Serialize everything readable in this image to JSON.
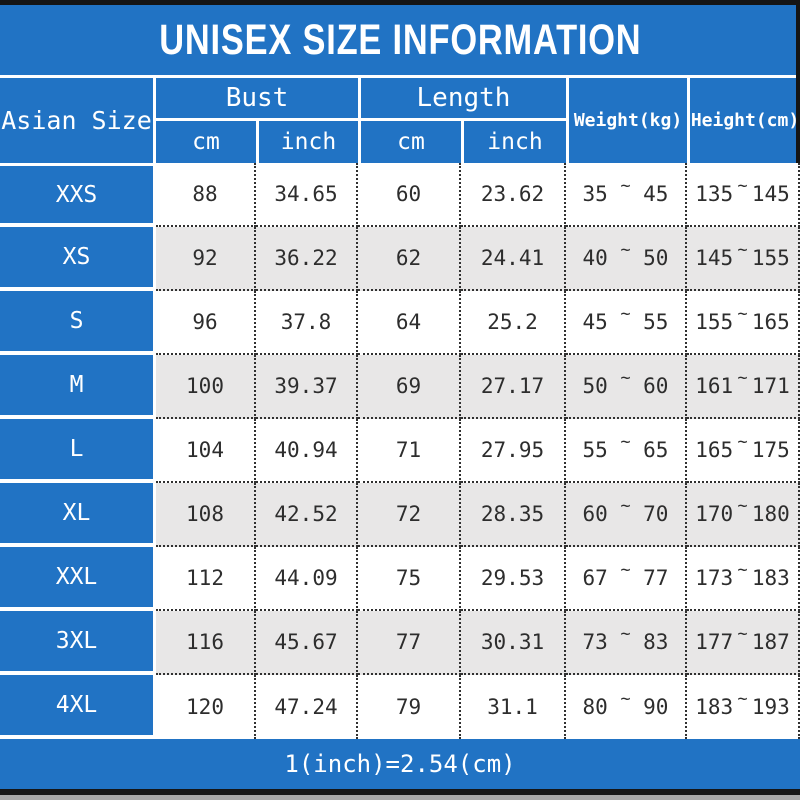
{
  "colors": {
    "accent_blue": "#2173c4",
    "alt_row_gray": "#e8e7e7",
    "bar_black": "#151515",
    "text_dark": "#2d2d2d"
  },
  "chart_data": {
    "type": "table",
    "title": "UNISEX SIZE INFORMATION",
    "header": {
      "asian_size": "Asian Size",
      "bust": "Bust",
      "length": "Length",
      "weight": "Weight(kg)",
      "height": "Height(cm)",
      "unit_cm": "cm",
      "unit_inch": "inch"
    },
    "range_separator": "~",
    "rows": [
      {
        "size": "XXS",
        "bust_cm": 88,
        "bust_inch": 34.65,
        "length_cm": 60,
        "length_inch": 23.62,
        "weight_min": 35,
        "weight_max": 45,
        "height_min": 135,
        "height_max": 145
      },
      {
        "size": "XS",
        "bust_cm": 92,
        "bust_inch": 36.22,
        "length_cm": 62,
        "length_inch": 24.41,
        "weight_min": 40,
        "weight_max": 50,
        "height_min": 145,
        "height_max": 155
      },
      {
        "size": "S",
        "bust_cm": 96,
        "bust_inch": 37.8,
        "length_cm": 64,
        "length_inch": 25.2,
        "weight_min": 45,
        "weight_max": 55,
        "height_min": 155,
        "height_max": 165
      },
      {
        "size": "M",
        "bust_cm": 100,
        "bust_inch": 39.37,
        "length_cm": 69,
        "length_inch": 27.17,
        "weight_min": 50,
        "weight_max": 60,
        "height_min": 161,
        "height_max": 171
      },
      {
        "size": "L",
        "bust_cm": 104,
        "bust_inch": 40.94,
        "length_cm": 71,
        "length_inch": 27.95,
        "weight_min": 55,
        "weight_max": 65,
        "height_min": 165,
        "height_max": 175
      },
      {
        "size": "XL",
        "bust_cm": 108,
        "bust_inch": 42.52,
        "length_cm": 72,
        "length_inch": 28.35,
        "weight_min": 60,
        "weight_max": 70,
        "height_min": 170,
        "height_max": 180
      },
      {
        "size": "XXL",
        "bust_cm": 112,
        "bust_inch": 44.09,
        "length_cm": 75,
        "length_inch": 29.53,
        "weight_min": 67,
        "weight_max": 77,
        "height_min": 173,
        "height_max": 183
      },
      {
        "size": "3XL",
        "bust_cm": 116,
        "bust_inch": 45.67,
        "length_cm": 77,
        "length_inch": 30.31,
        "weight_min": 73,
        "weight_max": 83,
        "height_min": 177,
        "height_max": 187
      },
      {
        "size": "4XL",
        "bust_cm": 120,
        "bust_inch": 47.24,
        "length_cm": 79,
        "length_inch": 31.1,
        "weight_min": 80,
        "weight_max": 90,
        "height_min": 183,
        "height_max": 193
      }
    ],
    "footer_note": "1(inch)=2.54(cm)"
  }
}
